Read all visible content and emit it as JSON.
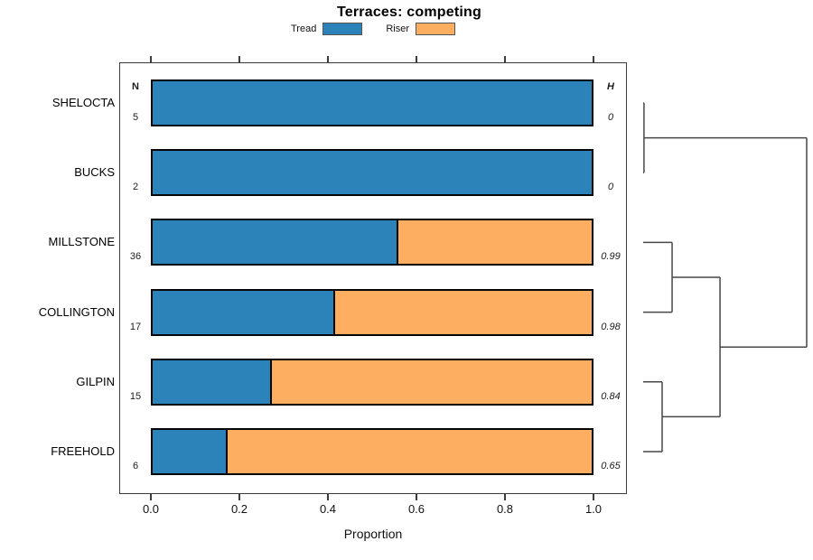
{
  "title": "Terraces: competing",
  "table_headers": {
    "n": "N",
    "h": "H"
  },
  "legend": {
    "items": [
      {
        "label": "Tread",
        "color": "#2b83ba"
      },
      {
        "label": "Riser",
        "color": "#fdae61"
      }
    ]
  },
  "axes": {
    "xlabel": "Proportion",
    "x_tick_labels": [
      "0.0",
      "0.2",
      "0.4",
      "0.6",
      "0.8",
      "1.0"
    ]
  },
  "chart_data": {
    "type": "bar",
    "subtype": "horizontal-stacked-proportion-spineplot",
    "title": "Terraces: competing",
    "xlabel": "Proportion",
    "xlim": [
      0,
      1
    ],
    "grid": false,
    "legend_position": "top-center",
    "categories": [
      "SHELOCTA",
      "BUCKS",
      "MILLSTONE",
      "COLLINGTON",
      "GILPIN",
      "FREEHOLD"
    ],
    "sample_sizes_N": [
      5,
      2,
      36,
      17,
      15,
      6
    ],
    "diversity_H": [
      "0",
      "0",
      "0.99",
      "0.98",
      "0.84",
      "0.65"
    ],
    "series": [
      {
        "name": "Tread",
        "color": "#2b83ba",
        "values": [
          1.0,
          1.0,
          0.556,
          0.412,
          0.267,
          0.167
        ]
      },
      {
        "name": "Riser",
        "color": "#fdae61",
        "values": [
          0.0,
          0.0,
          0.444,
          0.588,
          0.733,
          0.833
        ]
      }
    ],
    "x_ticks": [
      0.0,
      0.2,
      0.4,
      0.6,
      0.8,
      1.0
    ],
    "dendrogram": {
      "side": "right",
      "line_color": "#474747",
      "merges": [
        {
          "children": [
            "leaf0",
            "leaf1"
          ],
          "labels": [
            "SHELOCTA",
            "BUCKS"
          ],
          "height": 0.005
        },
        {
          "children": [
            "leaf2",
            "leaf3"
          ],
          "labels": [
            "MILLSTONE",
            "COLLINGTON"
          ],
          "height": 0.177
        },
        {
          "children": [
            "leaf4",
            "leaf5"
          ],
          "labels": [
            "GILPIN",
            "FREEHOLD"
          ],
          "height": 0.116
        },
        {
          "children": [
            "m1",
            "m2"
          ],
          "labels": [
            "MILLSTONE+COLLINGTON",
            "GILPIN+FREEHOLD"
          ],
          "height": 0.47
        },
        {
          "children": [
            "m0",
            "m3"
          ],
          "labels": [
            "SHELOCTA+BUCKS",
            "rest"
          ],
          "height": 1.0
        }
      ]
    }
  }
}
